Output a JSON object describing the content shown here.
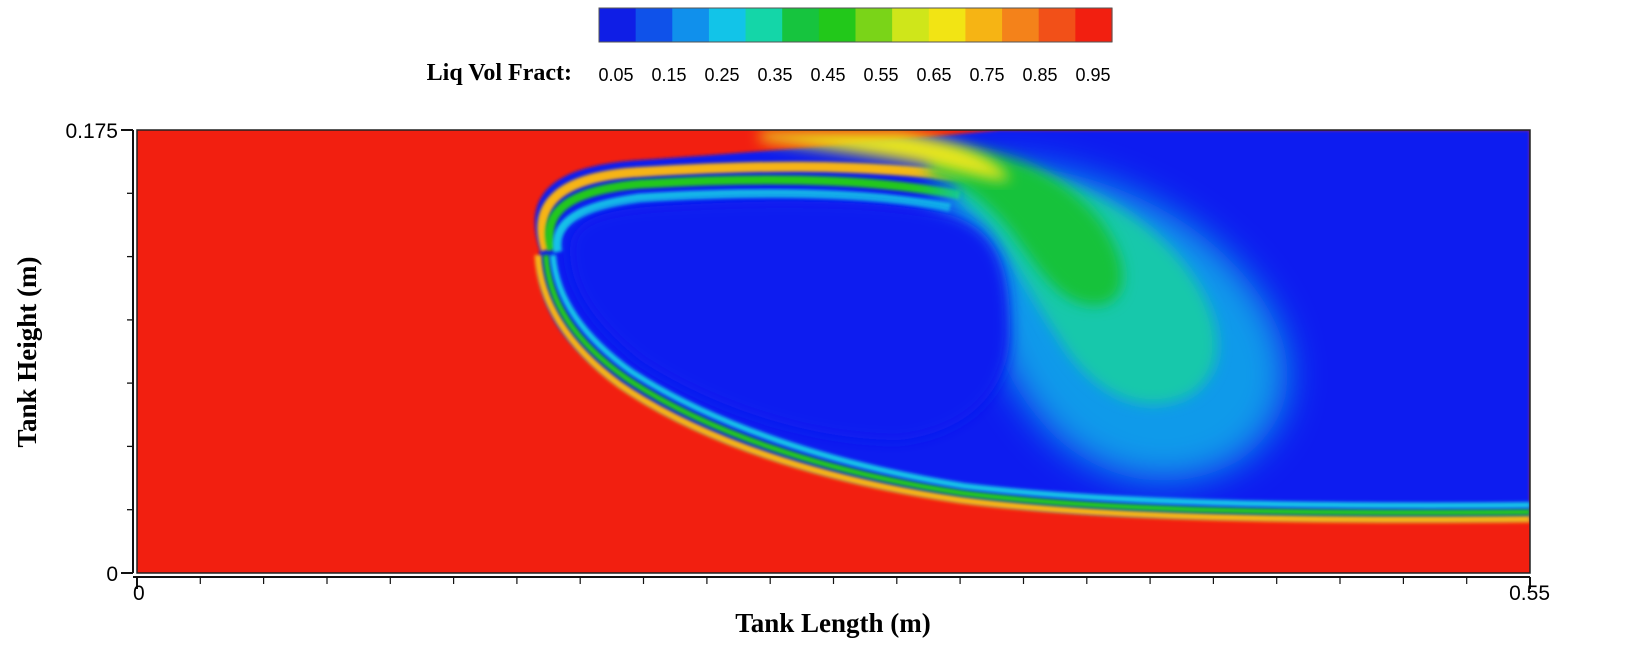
{
  "chart_data": {
    "type": "heatmap",
    "title": "",
    "xlabel": "Tank Length (m)",
    "ylabel": "Tank Height (m)",
    "xlim": [
      0,
      0.55
    ],
    "ylim": [
      0,
      0.175
    ],
    "x_ticks": [
      {
        "value": 0,
        "label": "0"
      },
      {
        "value": 0.55,
        "label": "0.55"
      }
    ],
    "y_ticks": [
      {
        "value": 0,
        "label": "0"
      },
      {
        "value": 0.175,
        "label": "0.175"
      }
    ],
    "colorbar": {
      "label": "Liq Vol Fract:",
      "levels": [
        0.05,
        0.15,
        0.25,
        0.35,
        0.45,
        0.55,
        0.65,
        0.75,
        0.85,
        0.95
      ],
      "level_labels": [
        "0.05",
        "0.15",
        "0.25",
        "0.35",
        "0.45",
        "0.55",
        "0.65",
        "0.75",
        "0.85",
        "0.95"
      ],
      "colors": [
        "#0f1ee6",
        "#0f52ea",
        "#1090ec",
        "#12c4e8",
        "#14d6a8",
        "#16c43e",
        "#22c81a",
        "#7ad418",
        "#cfe61a",
        "#f2e414",
        "#f6b414",
        "#f4821a",
        "#f25018",
        "#f21f10"
      ]
    },
    "field": {
      "liquid_color": "#f21f10",
      "gas_color": "#0e1df0",
      "interface_colors": [
        "#f6b414",
        "#e8e61a",
        "#22c81a",
        "#12c4e8",
        "#1060f0"
      ],
      "wave_crest_color": "#17c23a"
    },
    "grid": false,
    "legend_position": "top-center"
  }
}
